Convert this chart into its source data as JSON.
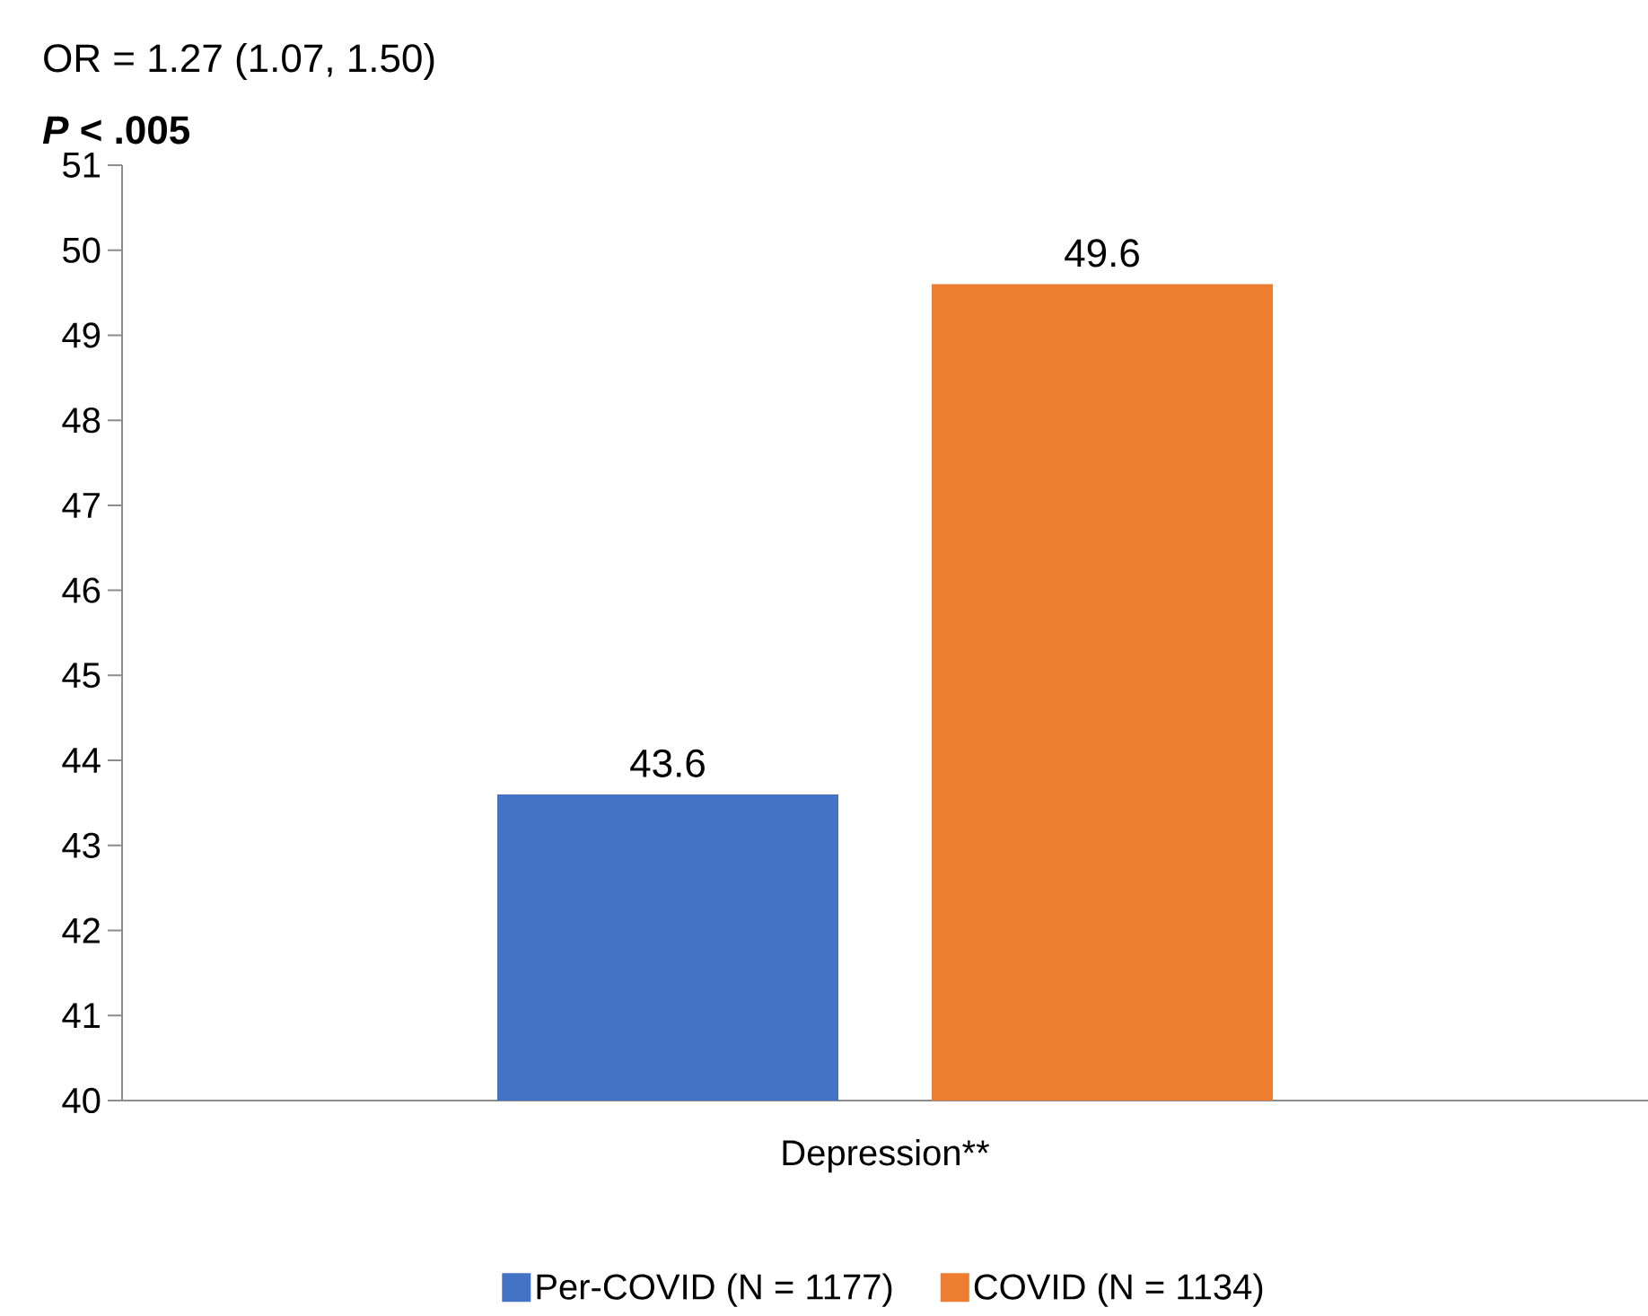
{
  "chart_data": {
    "type": "bar",
    "title": "OR = 1.27 (1.07, 1.50)",
    "subtitle": "*P* < .005",
    "categories": [
      "Depression**"
    ],
    "series": [
      {
        "name": "Per-COVID (N = 1177)",
        "color": "#4472c4",
        "values": [
          43.6
        ]
      },
      {
        "name": "COVID (N = 1134)",
        "color": "#ed7d31",
        "values": [
          49.6
        ]
      }
    ],
    "ylim": [
      40,
      51
    ],
    "yticks": [
      40,
      41,
      42,
      43,
      44,
      45,
      46,
      47,
      48,
      49,
      50,
      51
    ],
    "data_labels": true,
    "legend": "bottom",
    "grid": false
  }
}
